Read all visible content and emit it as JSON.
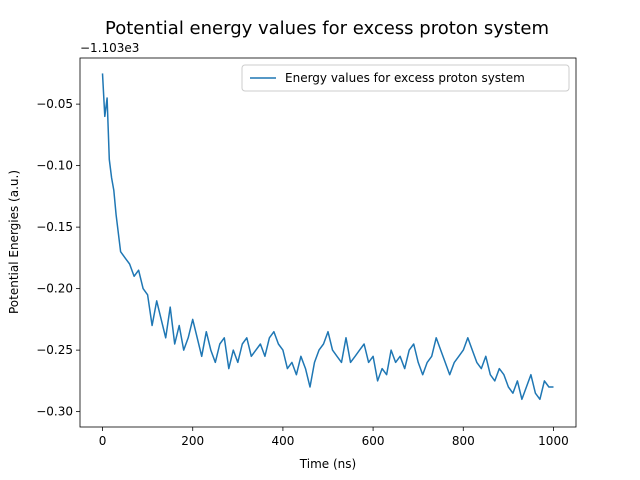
{
  "chart_data": {
    "type": "line",
    "title": "Potential energy values for excess proton system",
    "xlabel": "Time (ns)",
    "ylabel": "Potential Energies (a.u.)",
    "offset_label": "−1.103e3",
    "xlim": [
      -50,
      1050
    ],
    "ylim": [
      -0.3125,
      -0.0125
    ],
    "xticks": [
      0,
      200,
      400,
      600,
      800,
      1000
    ],
    "xtick_labels": [
      "0",
      "200",
      "400",
      "600",
      "800",
      "1000"
    ],
    "yticks": [
      -0.05,
      -0.1,
      -0.15,
      -0.2,
      -0.25,
      -0.3
    ],
    "ytick_labels": [
      "−0.05",
      "−0.10",
      "−0.15",
      "−0.20",
      "−0.25",
      "−0.30"
    ],
    "grid": false,
    "legend_position": "top-right",
    "series": [
      {
        "name": "Energy values for excess proton system",
        "color": "#1f77b4",
        "x": [
          0,
          5,
          10,
          15,
          20,
          25,
          30,
          40,
          50,
          60,
          70,
          80,
          90,
          100,
          110,
          120,
          130,
          140,
          150,
          160,
          170,
          180,
          190,
          200,
          210,
          220,
          230,
          240,
          250,
          260,
          270,
          280,
          290,
          300,
          310,
          320,
          330,
          340,
          350,
          360,
          370,
          380,
          390,
          400,
          410,
          420,
          430,
          440,
          450,
          460,
          470,
          480,
          490,
          500,
          510,
          520,
          530,
          540,
          550,
          560,
          570,
          580,
          590,
          600,
          610,
          620,
          630,
          640,
          650,
          660,
          670,
          680,
          690,
          700,
          710,
          720,
          730,
          740,
          750,
          760,
          770,
          780,
          790,
          800,
          810,
          820,
          830,
          840,
          850,
          860,
          870,
          880,
          890,
          900,
          910,
          920,
          930,
          940,
          950,
          960,
          970,
          980,
          990,
          1000
        ],
        "y": [
          -0.025,
          -0.06,
          -0.045,
          -0.095,
          -0.11,
          -0.12,
          -0.14,
          -0.17,
          -0.175,
          -0.18,
          -0.19,
          -0.185,
          -0.2,
          -0.205,
          -0.23,
          -0.21,
          -0.225,
          -0.24,
          -0.215,
          -0.245,
          -0.23,
          -0.25,
          -0.24,
          -0.225,
          -0.24,
          -0.255,
          -0.235,
          -0.25,
          -0.26,
          -0.245,
          -0.24,
          -0.265,
          -0.25,
          -0.26,
          -0.245,
          -0.24,
          -0.255,
          -0.25,
          -0.245,
          -0.255,
          -0.24,
          -0.235,
          -0.245,
          -0.25,
          -0.265,
          -0.26,
          -0.27,
          -0.255,
          -0.265,
          -0.28,
          -0.26,
          -0.25,
          -0.245,
          -0.235,
          -0.25,
          -0.255,
          -0.26,
          -0.24,
          -0.26,
          -0.255,
          -0.25,
          -0.245,
          -0.26,
          -0.255,
          -0.275,
          -0.265,
          -0.27,
          -0.25,
          -0.26,
          -0.255,
          -0.265,
          -0.25,
          -0.245,
          -0.26,
          -0.27,
          -0.26,
          -0.255,
          -0.24,
          -0.25,
          -0.26,
          -0.27,
          -0.26,
          -0.255,
          -0.25,
          -0.24,
          -0.25,
          -0.26,
          -0.265,
          -0.255,
          -0.27,
          -0.275,
          -0.265,
          -0.27,
          -0.28,
          -0.285,
          -0.275,
          -0.29,
          -0.28,
          -0.27,
          -0.285,
          -0.29,
          -0.275,
          -0.28,
          -0.28
        ]
      }
    ]
  }
}
